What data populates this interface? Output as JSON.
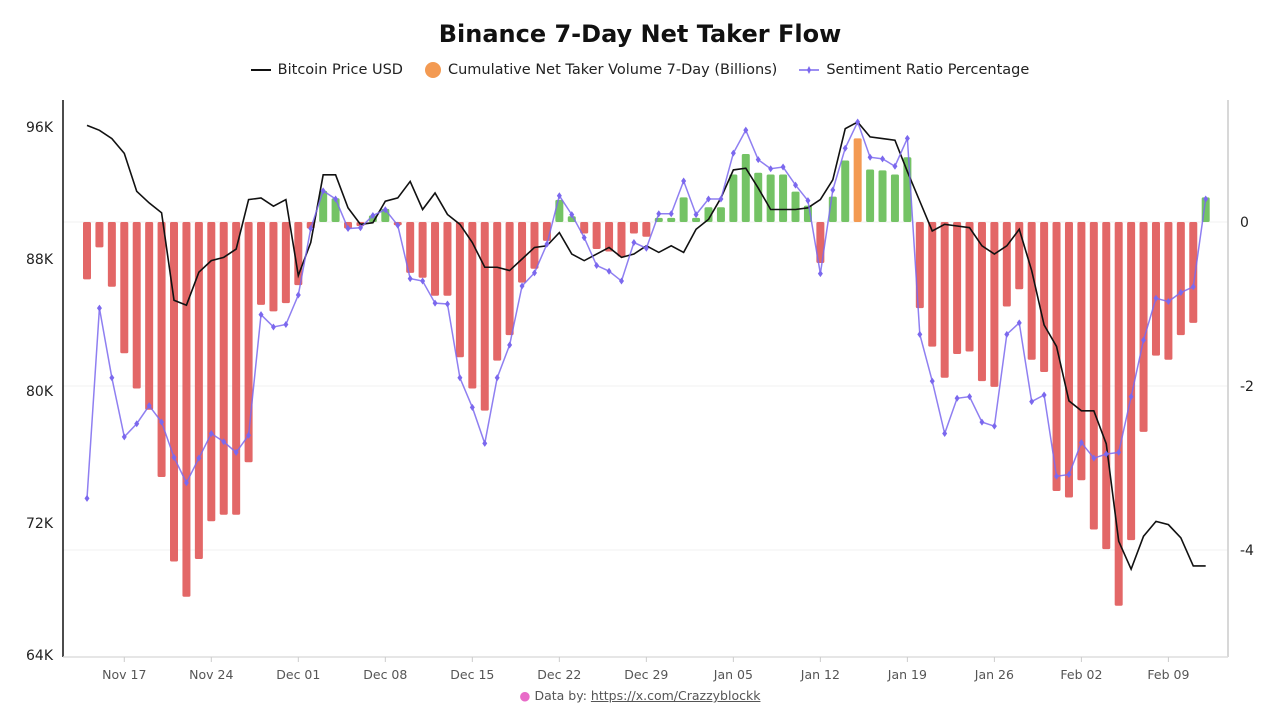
{
  "chart_data": {
    "type": "bar+line",
    "title": "Binance 7-Day Net Taker Flow",
    "legend": [
      "Bitcoin Price USD",
      "Cumulative Net Taker Volume 7-Day (Billions)",
      "Sentiment Ratio Percentage"
    ],
    "legend_placement": "top",
    "colors": {
      "price": "#111111",
      "positive": "#74c365",
      "negative": "#e36767",
      "highlight": "#f39a52",
      "sentiment": "#7b68ee"
    },
    "x_ticks": [
      "Nov 17",
      "Nov 24",
      "Dec 01",
      "Dec 08",
      "Dec 15",
      "Dec 22",
      "Dec 29",
      "Jan 05",
      "Jan 12",
      "Jan 19",
      "Jan 26",
      "Feb 02",
      "Feb 09"
    ],
    "left_axis": {
      "ticks": [
        "96K",
        "88K",
        "80K",
        "72K",
        "64K"
      ],
      "tick_values": [
        96,
        88,
        80,
        72,
        64
      ],
      "range": [
        64,
        97.5
      ],
      "unit": "K USD"
    },
    "right_axis": {
      "ticks": [
        "0",
        "-2",
        "-4"
      ],
      "tick_values": [
        0,
        -2,
        -4
      ],
      "range": [
        -5.2,
        1.5
      ]
    },
    "x": [
      "Nov 14",
      "Nov 15",
      "Nov 16",
      "Nov 17",
      "Nov 18",
      "Nov 19",
      "Nov 20",
      "Nov 21",
      "Nov 22",
      "Nov 23",
      "Nov 24",
      "Nov 25",
      "Nov 26",
      "Nov 27",
      "Nov 28",
      "Nov 29",
      "Nov 30",
      "Dec 01",
      "Dec 02",
      "Dec 03",
      "Dec 04",
      "Dec 05",
      "Dec 06",
      "Dec 07",
      "Dec 08",
      "Dec 09",
      "Dec 10",
      "Dec 11",
      "Dec 12",
      "Dec 13",
      "Dec 14",
      "Dec 15",
      "Dec 16",
      "Dec 17",
      "Dec 18",
      "Dec 19",
      "Dec 20",
      "Dec 21",
      "Dec 22",
      "Dec 23",
      "Dec 24",
      "Dec 25",
      "Dec 26",
      "Dec 27",
      "Dec 28",
      "Dec 29",
      "Dec 30",
      "Dec 31",
      "Jan 01",
      "Jan 02",
      "Jan 03",
      "Jan 04",
      "Jan 05",
      "Jan 06",
      "Jan 07",
      "Jan 08",
      "Jan 09",
      "Jan 10",
      "Jan 11",
      "Jan 12",
      "Jan 13",
      "Jan 14",
      "Jan 15",
      "Jan 16",
      "Jan 17",
      "Jan 18",
      "Jan 19",
      "Jan 20",
      "Jan 21",
      "Jan 22",
      "Jan 23",
      "Jan 24",
      "Jan 25",
      "Jan 26",
      "Jan 27",
      "Jan 28",
      "Jan 29",
      "Jan 30",
      "Jan 31",
      "Feb 01",
      "Feb 02",
      "Feb 03",
      "Feb 04",
      "Feb 05",
      "Feb 06",
      "Feb 07",
      "Feb 08",
      "Feb 09",
      "Feb 10",
      "Feb 11",
      "Feb 12"
    ],
    "series": [
      {
        "name": "Bitcoin Price USD",
        "type": "line",
        "axis": "left",
        "values": [
          96.1,
          95.8,
          95.3,
          94.4,
          92.1,
          91.4,
          90.8,
          85.5,
          85.2,
          87.2,
          87.9,
          88.1,
          88.6,
          91.6,
          91.7,
          91.2,
          91.6,
          87.0,
          89.0,
          93.1,
          93.1,
          91.1,
          90.1,
          90.2,
          91.5,
          91.7,
          92.7,
          91.0,
          92.0,
          90.7,
          90.1,
          89.0,
          87.5,
          87.5,
          87.3,
          88.0,
          88.7,
          88.8,
          89.6,
          88.3,
          87.9,
          88.3,
          88.7,
          88.1,
          88.3,
          88.8,
          88.4,
          88.8,
          88.4,
          89.8,
          90.4,
          91.7,
          93.4,
          93.5,
          92.3,
          91.0,
          91.0,
          91.0,
          91.1,
          91.6,
          92.8,
          95.9,
          96.3,
          95.4,
          95.3,
          95.2,
          93.3,
          91.5,
          89.7,
          90.1,
          90.0,
          89.9,
          88.8,
          88.3,
          88.8,
          89.8,
          87.3,
          84.0,
          82.7,
          79.4,
          78.8,
          78.8,
          76.8,
          70.9,
          69.2,
          71.2,
          72.1,
          71.9,
          71.1,
          69.4,
          69.4
        ]
      },
      {
        "name": "Cumulative Net Taker Volume 7-Day (Billions)",
        "type": "bar",
        "axis": "right",
        "values": [
          -0.7,
          -0.31,
          -0.79,
          -1.6,
          -2.03,
          -2.29,
          -3.11,
          -4.14,
          -4.57,
          -4.11,
          -3.65,
          -3.57,
          -3.57,
          -2.93,
          -1.01,
          -1.09,
          -0.99,
          -0.77,
          -0.08,
          0.38,
          0.29,
          -0.08,
          -0.05,
          0.08,
          0.16,
          -0.04,
          -0.62,
          -0.68,
          -0.9,
          -0.9,
          -1.65,
          -2.03,
          -2.3,
          -1.69,
          -1.38,
          -0.74,
          -0.57,
          -0.23,
          0.27,
          0.07,
          -0.14,
          -0.33,
          -0.36,
          -0.42,
          -0.14,
          -0.18,
          0.05,
          0.05,
          0.3,
          0.05,
          0.18,
          0.18,
          0.58,
          0.83,
          0.6,
          0.58,
          0.58,
          0.37,
          0.2,
          -0.5,
          0.31,
          0.75,
          1.02,
          0.64,
          0.63,
          0.58,
          0.79,
          -1.05,
          -1.52,
          -1.9,
          -1.61,
          -1.58,
          -1.94,
          -2.01,
          -1.03,
          -0.82,
          -1.68,
          -1.83,
          -3.28,
          -3.36,
          -3.15,
          -3.75,
          -3.99,
          -4.68,
          -3.88,
          -2.56,
          -1.63,
          -1.68,
          -1.38,
          -1.23,
          0.3
        ]
      },
      {
        "name": "Sentiment Ratio Percentage",
        "type": "line",
        "axis": "right",
        "values": [
          -3.37,
          -1.05,
          -1.9,
          -2.62,
          -2.46,
          -2.24,
          -2.44,
          -2.87,
          -3.18,
          -2.88,
          -2.58,
          -2.68,
          -2.81,
          -2.6,
          -1.13,
          -1.28,
          -1.25,
          -0.89,
          -0.08,
          0.38,
          0.28,
          -0.08,
          -0.07,
          0.08,
          0.15,
          -0.04,
          -0.69,
          -0.72,
          -0.99,
          -1.0,
          -1.9,
          -2.26,
          -2.7,
          -1.9,
          -1.5,
          -0.78,
          -0.62,
          -0.27,
          0.32,
          0.09,
          -0.19,
          -0.53,
          -0.6,
          -0.72,
          -0.25,
          -0.32,
          0.1,
          0.1,
          0.5,
          0.09,
          0.28,
          0.28,
          0.84,
          1.12,
          0.76,
          0.65,
          0.67,
          0.45,
          0.26,
          -0.63,
          0.39,
          0.9,
          1.22,
          0.79,
          0.77,
          0.68,
          1.02,
          -1.37,
          -1.94,
          -2.58,
          -2.15,
          -2.13,
          -2.44,
          -2.49,
          -1.37,
          -1.23,
          -2.19,
          -2.11,
          -3.1,
          -3.08,
          -2.69,
          -2.88,
          -2.83,
          -2.81,
          -2.13,
          -1.44,
          -0.93,
          -0.97,
          -0.86,
          -0.79,
          0.28
        ]
      }
    ],
    "grid": true
  },
  "footer": {
    "prefix": "Data by:",
    "link": "https://x.com/Crazzyblockk",
    "icon": "brain-icon"
  }
}
